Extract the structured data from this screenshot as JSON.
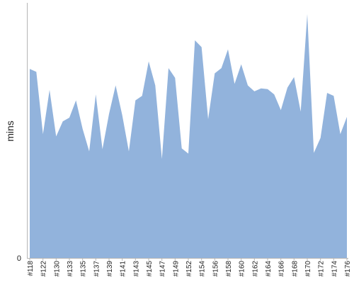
{
  "chart_data": {
    "type": "area",
    "ylabel": "mins",
    "ylim": [
      0,
      340
    ],
    "y_tick_labels": [
      "0"
    ],
    "grid": false,
    "legend": "none",
    "x_tick_labels": [
      "#118",
      "#122",
      "#130",
      "#133",
      "#135",
      "#137",
      "#139",
      "#141",
      "#143",
      "#145",
      "#147",
      "#149",
      "#152",
      "#154",
      "#156",
      "#158",
      "#160",
      "#162",
      "#164",
      "#166",
      "#168",
      "#170",
      "#172",
      "#174",
      "#176"
    ],
    "values": [
      252,
      248,
      165,
      224,
      162,
      182,
      187,
      210,
      172,
      142,
      218,
      145,
      192,
      230,
      190,
      142,
      210,
      216,
      262,
      230,
      132,
      253,
      240,
      146,
      139,
      290,
      281,
      185,
      246,
      253,
      278,
      232,
      258,
      230,
      222,
      226,
      225,
      218,
      197,
      227,
      241,
      195,
      325,
      140,
      160,
      220,
      216,
      165,
      188
    ],
    "colors": {
      "area": "#92b3dc",
      "axis": "#b5b5b5"
    }
  }
}
